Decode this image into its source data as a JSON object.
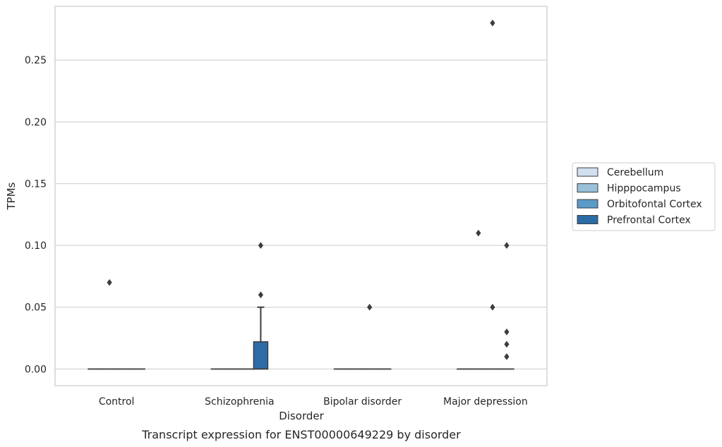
{
  "caption": "Transcript expression for ENST00000649229 by disorder",
  "chart_data": {
    "type": "box",
    "xlabel": "Disorder",
    "ylabel": "TPMs",
    "ylim": [
      -0.0135,
      0.2935
    ],
    "yticks": [
      0.0,
      0.05,
      0.1,
      0.15,
      0.2,
      0.25
    ],
    "ytick_labels": [
      "0.00",
      "0.05",
      "0.10",
      "0.15",
      "0.20",
      "0.25"
    ],
    "grid": true,
    "legend_position": "right",
    "categories": [
      "Control",
      "Schizophrenia",
      "Bipolar disorder",
      "Major depression"
    ],
    "series": [
      {
        "name": "Cerebellum",
        "color": "#d1e0ef",
        "boxes": [
          {
            "category": "Control",
            "q1": 0,
            "median": 0,
            "q3": 0,
            "whisker_low": 0,
            "whisker_high": 0,
            "outliers": []
          },
          {
            "category": "Schizophrenia",
            "q1": 0,
            "median": 0,
            "q3": 0,
            "whisker_low": 0,
            "whisker_high": 0,
            "outliers": []
          },
          {
            "category": "Bipolar disorder",
            "q1": 0,
            "median": 0,
            "q3": 0,
            "whisker_low": 0,
            "whisker_high": 0,
            "outliers": []
          },
          {
            "category": "Major depression",
            "q1": 0,
            "median": 0,
            "q3": 0,
            "whisker_low": 0,
            "whisker_high": 0,
            "outliers": []
          }
        ]
      },
      {
        "name": "Hipppocampus",
        "color": "#9ac0da",
        "boxes": [
          {
            "category": "Control",
            "q1": 0,
            "median": 0,
            "q3": 0,
            "whisker_low": 0,
            "whisker_high": 0,
            "outliers": [
              0.07
            ]
          },
          {
            "category": "Schizophrenia",
            "q1": 0,
            "median": 0,
            "q3": 0,
            "whisker_low": 0,
            "whisker_high": 0,
            "outliers": []
          },
          {
            "category": "Bipolar disorder",
            "q1": 0,
            "median": 0,
            "q3": 0,
            "whisker_low": 0,
            "whisker_high": 0,
            "outliers": []
          },
          {
            "category": "Major depression",
            "q1": 0,
            "median": 0,
            "q3": 0,
            "whisker_low": 0,
            "whisker_high": 0,
            "outliers": [
              0.11
            ]
          }
        ]
      },
      {
        "name": "Orbitofontal Cortex",
        "color": "#5a9ac8",
        "boxes": [
          {
            "category": "Control",
            "q1": 0,
            "median": 0,
            "q3": 0,
            "whisker_low": 0,
            "whisker_high": 0,
            "outliers": []
          },
          {
            "category": "Schizophrenia",
            "q1": 0,
            "median": 0,
            "q3": 0,
            "whisker_low": 0,
            "whisker_high": 0,
            "outliers": []
          },
          {
            "category": "Bipolar disorder",
            "q1": 0,
            "median": 0,
            "q3": 0,
            "whisker_low": 0,
            "whisker_high": 0,
            "outliers": [
              0.05
            ]
          },
          {
            "category": "Major depression",
            "q1": 0,
            "median": 0,
            "q3": 0,
            "whisker_low": 0,
            "whisker_high": 0,
            "outliers": [
              0.05,
              0.28
            ]
          }
        ]
      },
      {
        "name": "Prefrontal Cortex",
        "color": "#2b6ca7",
        "boxes": [
          {
            "category": "Control",
            "q1": 0,
            "median": 0,
            "q3": 0,
            "whisker_low": 0,
            "whisker_high": 0,
            "outliers": []
          },
          {
            "category": "Schizophrenia",
            "q1": 0,
            "median": 0,
            "q3": 0.022,
            "whisker_low": 0,
            "whisker_high": 0.05,
            "outliers": [
              0.06,
              0.1
            ]
          },
          {
            "category": "Bipolar disorder",
            "q1": 0,
            "median": 0,
            "q3": 0,
            "whisker_low": 0,
            "whisker_high": 0,
            "outliers": []
          },
          {
            "category": "Major depression",
            "q1": 0,
            "median": 0,
            "q3": 0,
            "whisker_low": 0,
            "whisker_high": 0,
            "outliers": [
              0.01,
              0.02,
              0.03,
              0.1
            ]
          }
        ]
      }
    ]
  }
}
